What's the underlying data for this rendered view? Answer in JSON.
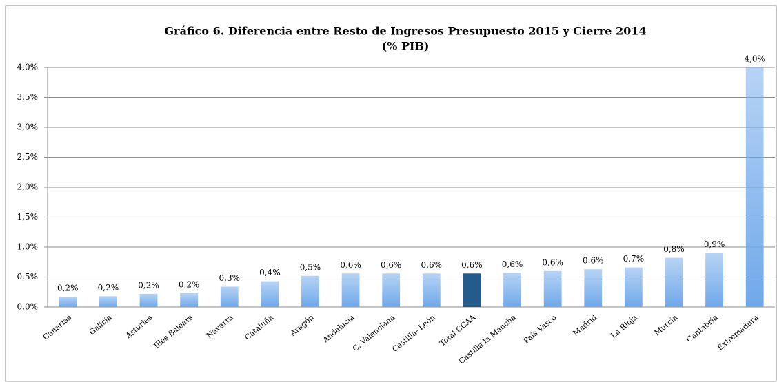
{
  "chart_data": {
    "type": "bar",
    "title": "Gráfico 6. Diferencia entre Resto de Ingresos Presupuesto 2015 y Cierre 2014",
    "subtitle": "(% PIB)",
    "categories": [
      "Canarias",
      "Galicia",
      "Asturias",
      "Illes Balears",
      "Navarra",
      "Cataluña",
      "Aragón",
      "Andalucía",
      "C. Valenciana",
      "Castilla- León",
      "Total CCAA",
      "Castilla la Mancha",
      "País Vasco",
      "Madrid",
      "La Rioja",
      "Murcia",
      "Cantabria",
      "Extremadura"
    ],
    "values": [
      0.17,
      0.18,
      0.22,
      0.23,
      0.34,
      0.43,
      0.52,
      0.56,
      0.56,
      0.56,
      0.56,
      0.57,
      0.6,
      0.63,
      0.66,
      0.82,
      0.9,
      4.0
    ],
    "value_labels": [
      "0,2%",
      "0,2%",
      "0,2%",
      "0,2%",
      "0,3%",
      "0,4%",
      "0,5%",
      "0,6%",
      "0,6%",
      "0,6%",
      "0,6%",
      "0,6%",
      "0,6%",
      "0,6%",
      "0,7%",
      "0,8%",
      "0,9%",
      "4,0%"
    ],
    "colors": [
      "#6fa8ea",
      "#6fa8ea",
      "#6fa8ea",
      "#6fa8ea",
      "#6fa8ea",
      "#6fa8ea",
      "#6fa8ea",
      "#6fa8ea",
      "#6fa8ea",
      "#6fa8ea",
      "#245a8c",
      "#6fa8ea",
      "#6fa8ea",
      "#6fa8ea",
      "#6fa8ea",
      "#6fa8ea",
      "#6fa8ea",
      "#6fa8ea"
    ],
    "ylim": [
      0,
      4.0
    ],
    "yticks": [
      {
        "value": 0,
        "label": "0,0%"
      },
      {
        "value": 0.5,
        "label": "0,5%"
      },
      {
        "value": 1.0,
        "label": "1,0%"
      },
      {
        "value": 1.5,
        "label": "1,5%"
      },
      {
        "value": 2.0,
        "label": "2,0%"
      },
      {
        "value": 2.5,
        "label": "2,5%"
      },
      {
        "value": 3.0,
        "label": "3,0%"
      },
      {
        "value": 3.5,
        "label": "3,5%"
      },
      {
        "value": 4.0,
        "label": "4,0%"
      }
    ],
    "grid": true
  }
}
